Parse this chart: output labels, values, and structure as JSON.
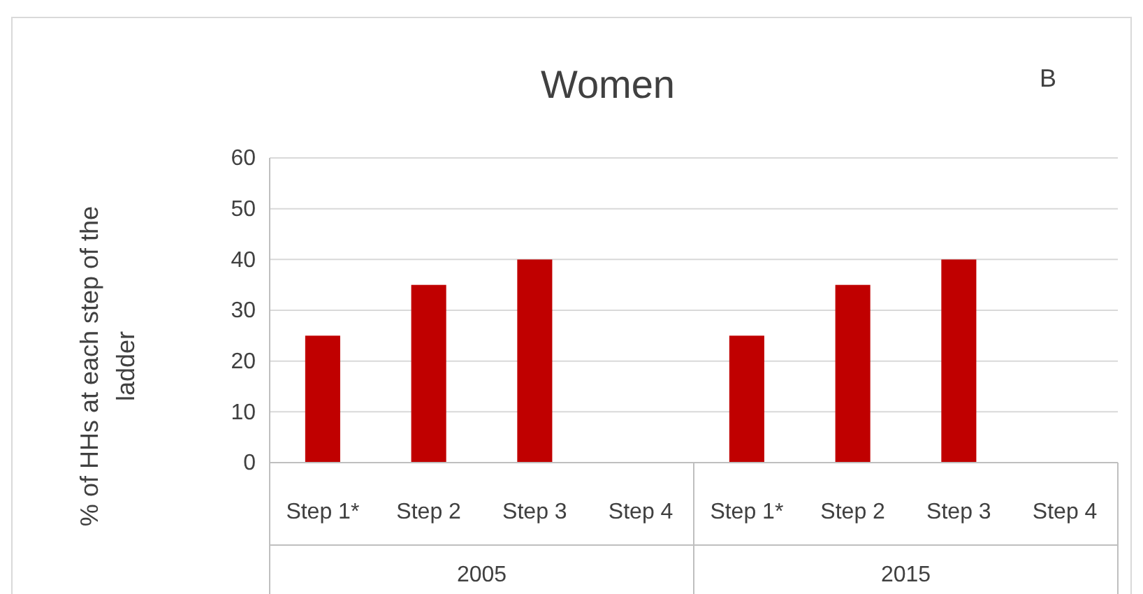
{
  "chart_data": {
    "type": "bar",
    "title": "Women",
    "ylabel": "% of HHs at each step of the ladder",
    "categories": [
      "Step 1*",
      "Step 2",
      "Step 3",
      "Step 4",
      "Step 1*",
      "Step 2",
      "Step 3",
      "Step 4"
    ],
    "values": [
      25,
      35,
      40,
      0,
      25,
      35,
      40,
      0
    ],
    "color": "#c00000",
    "ylim": [
      0,
      60
    ],
    "yticks": [
      0,
      10,
      20,
      30,
      40,
      50,
      60
    ],
    "grid": "y",
    "annotations": [
      "B",
      "2005",
      "2015"
    ]
  }
}
